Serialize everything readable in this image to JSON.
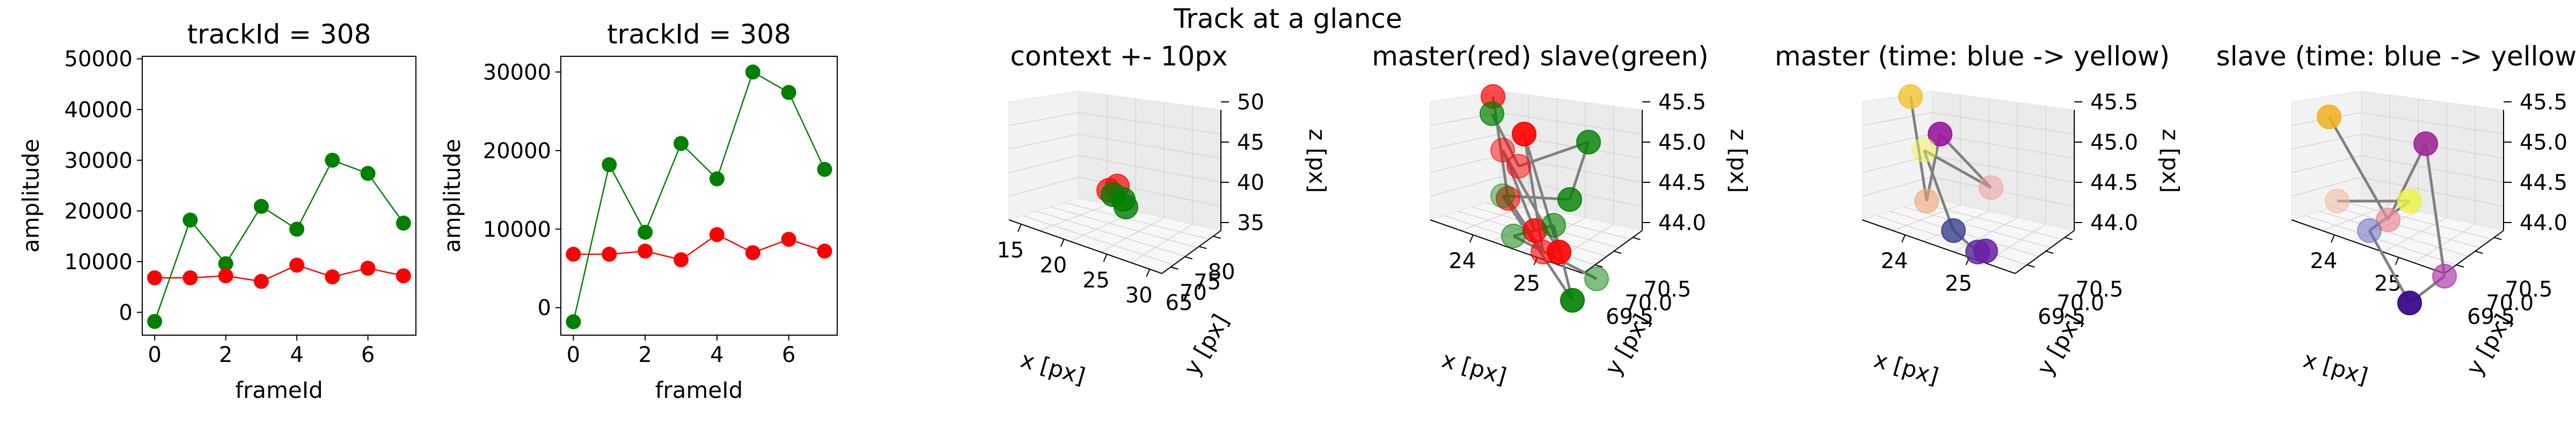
{
  "figure": {
    "suptitle": "Track at a glance"
  },
  "chart_data": [
    {
      "type": "line",
      "title": "trackId = 308",
      "xlabel": "frameId",
      "ylabel": "amplitude",
      "x": [
        0,
        1,
        2,
        3,
        4,
        5,
        6,
        7
      ],
      "xticks": [
        "0",
        "2",
        "4",
        "6"
      ],
      "xtick_values": [
        0,
        2,
        4,
        6
      ],
      "yticks": [
        "0",
        "10000",
        "20000",
        "30000",
        "40000",
        "50000"
      ],
      "ytick_values": [
        0,
        10000,
        20000,
        30000,
        40000,
        50000
      ],
      "xlim": [
        -0.35,
        7.35
      ],
      "ylim": [
        -4500,
        50500
      ],
      "grid": false,
      "series": [
        {
          "color": "#008000",
          "values": [
            -1800,
            18200,
            9600,
            20900,
            16400,
            30000,
            27400,
            17600
          ]
        },
        {
          "color": "#ff0000",
          "values": [
            6800,
            6800,
            7200,
            6100,
            9300,
            7000,
            8700,
            7200
          ]
        }
      ]
    },
    {
      "type": "line",
      "title": "trackId = 308",
      "xlabel": "frameId",
      "ylabel": "amplitude",
      "x": [
        0,
        1,
        2,
        3,
        4,
        5,
        6,
        7
      ],
      "xticks": [
        "0",
        "2",
        "4",
        "6"
      ],
      "xtick_values": [
        0,
        2,
        4,
        6
      ],
      "yticks": [
        "0",
        "10000",
        "20000",
        "30000"
      ],
      "ytick_values": [
        0,
        10000,
        20000,
        30000
      ],
      "xlim": [
        -0.35,
        7.35
      ],
      "ylim": [
        -3500,
        32000
      ],
      "grid": false,
      "series": [
        {
          "color": "#008000",
          "values": [
            -1800,
            18200,
            9600,
            20900,
            16400,
            30000,
            27400,
            17600
          ]
        },
        {
          "color": "#ff0000",
          "values": [
            6800,
            6800,
            7200,
            6100,
            9300,
            7000,
            8700,
            7200
          ]
        }
      ]
    },
    {
      "type": "scatter",
      "projection": "3d",
      "title": "context +- 10px",
      "xlabel": "x [px]",
      "ylabel": "y [px]",
      "zlabel": "z [px]",
      "xticks": [
        "15",
        "20",
        "25",
        "30"
      ],
      "yticks": [
        "65",
        "70",
        "75",
        "80"
      ],
      "zticks": [
        "35",
        "40",
        "45",
        "50"
      ],
      "points": [
        {
          "color": "#ff0000",
          "alpha": 0.7,
          "x": 24,
          "y": 70,
          "z": 44.5
        },
        {
          "color": "#ff0000",
          "alpha": 0.7,
          "x": 25,
          "y": 70,
          "z": 45
        },
        {
          "color": "#008000",
          "alpha": 0.8,
          "x": 24.5,
          "y": 70.2,
          "z": 44.8
        },
        {
          "color": "#008000",
          "alpha": 0.8,
          "x": 25.2,
          "y": 69.8,
          "z": 44.2
        },
        {
          "color": "#008000",
          "alpha": 0.8,
          "x": 25.6,
          "y": 70.4,
          "z": 44.6
        }
      ]
    },
    {
      "type": "scatter",
      "projection": "3d",
      "title": "master(red) slave(green)",
      "xlabel": "x [px]",
      "ylabel": "y [px]",
      "zlabel": "z [px]",
      "xticks": [
        "24",
        "25"
      ],
      "yticks": [
        "69.5",
        "70.0",
        "70.5"
      ],
      "zticks": [
        "44.0",
        "44.5",
        "45.0",
        "45.5"
      ],
      "points": [
        {
          "color": "#ff0000",
          "alpha": 0.7
        },
        {
          "color": "#ff0000",
          "alpha": 0.9
        },
        {
          "color": "#ff0000",
          "alpha": 0.5
        },
        {
          "color": "#ff0000",
          "alpha": 0.5
        },
        {
          "color": "#ff0000",
          "alpha": 0.6
        },
        {
          "color": "#ff0000",
          "alpha": 0.8
        },
        {
          "color": "#ff0000",
          "alpha": 0.6
        },
        {
          "color": "#ff0000",
          "alpha": 0.9
        },
        {
          "color": "#008000",
          "alpha": 0.7
        },
        {
          "color": "#008000",
          "alpha": 0.8
        },
        {
          "color": "#008000",
          "alpha": 0.4
        },
        {
          "color": "#008000",
          "alpha": 0.8
        },
        {
          "color": "#008000",
          "alpha": 0.6
        },
        {
          "color": "#008000",
          "alpha": 0.5
        },
        {
          "color": "#008000",
          "alpha": 0.5
        },
        {
          "color": "#008000",
          "alpha": 0.9
        }
      ]
    },
    {
      "type": "scatter",
      "projection": "3d",
      "title": "master (time: blue -> yellow)",
      "xlabel": "x [px]",
      "ylabel": "y [px]",
      "zlabel": "z [px]",
      "xticks": [
        "24",
        "25"
      ],
      "yticks": [
        "69.5",
        "70.0",
        "70.5"
      ],
      "zticks": [
        "44.0",
        "44.5",
        "45.0",
        "45.5"
      ],
      "points": [
        {
          "color": "#f2c230",
          "alpha": 0.8
        },
        {
          "color": "#9b179e",
          "alpha": 0.9
        },
        {
          "color": "#f4f35a",
          "alpha": 0.5
        },
        {
          "color": "#f0a577",
          "alpha": 0.6
        },
        {
          "color": "#ef9a9a",
          "alpha": 0.5
        },
        {
          "color": "#3a3d8f",
          "alpha": 0.8
        },
        {
          "color": "#5c2ea0",
          "alpha": 0.85
        },
        {
          "color": "#6a1fa8",
          "alpha": 0.85
        }
      ]
    },
    {
      "type": "scatter",
      "projection": "3d",
      "title": "slave (time: blue -> yellow)",
      "xlabel": "x [px]",
      "ylabel": "y [px]",
      "zlabel": "z [px]",
      "xticks": [
        "24",
        "25"
      ],
      "yticks": [
        "69.5",
        "70.0",
        "70.5"
      ],
      "zticks": [
        "44.0",
        "44.5",
        "45.0",
        "45.5"
      ],
      "points": [
        {
          "color": "#f0b020",
          "alpha": 0.85
        },
        {
          "color": "#a02898",
          "alpha": 0.9
        },
        {
          "color": "#f2b89a",
          "alpha": 0.55
        },
        {
          "color": "#eef242",
          "alpha": 0.8
        },
        {
          "color": "#e98b98",
          "alpha": 0.7
        },
        {
          "color": "#6a6fc4",
          "alpha": 0.55
        },
        {
          "color": "#b03aa8",
          "alpha": 0.7
        },
        {
          "color": "#3a0a8a",
          "alpha": 0.95
        }
      ]
    }
  ]
}
